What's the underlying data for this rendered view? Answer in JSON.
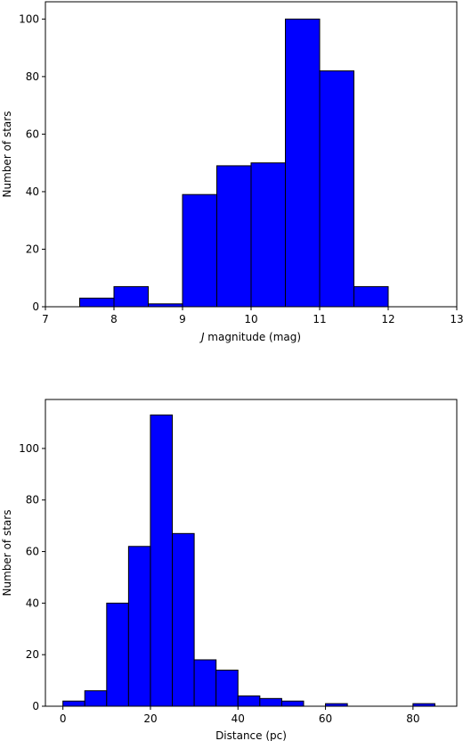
{
  "chart_data": [
    {
      "type": "bar",
      "title": "",
      "xlabel_prefix": "J",
      "xlabel": " magnitude (mag)",
      "ylabel": "Number of stars",
      "xlim": [
        7,
        13
      ],
      "ylim": [
        0,
        106
      ],
      "xticks": [
        7,
        8,
        9,
        10,
        11,
        12,
        13
      ],
      "yticks": [
        0,
        20,
        40,
        60,
        80,
        100
      ],
      "bar_color": "#0000ff",
      "bins": [
        {
          "x0": 7.5,
          "x1": 8.0,
          "value": 3
        },
        {
          "x0": 8.0,
          "x1": 8.5,
          "value": 7
        },
        {
          "x0": 8.5,
          "x1": 9.0,
          "value": 1
        },
        {
          "x0": 9.0,
          "x1": 9.5,
          "value": 39
        },
        {
          "x0": 9.5,
          "x1": 10.0,
          "value": 49
        },
        {
          "x0": 10.0,
          "x1": 10.5,
          "value": 50
        },
        {
          "x0": 10.5,
          "x1": 11.0,
          "value": 100
        },
        {
          "x0": 11.0,
          "x1": 11.5,
          "value": 82
        },
        {
          "x0": 11.5,
          "x1": 12.0,
          "value": 7
        }
      ]
    },
    {
      "type": "bar",
      "title": "",
      "xlabel_prefix": "",
      "xlabel": "Distance (pc)",
      "ylabel": "Number of stars",
      "xlim": [
        -4,
        90
      ],
      "ylim": [
        0,
        119
      ],
      "xticks": [
        0,
        20,
        40,
        60,
        80
      ],
      "yticks": [
        0,
        20,
        40,
        60,
        80,
        100
      ],
      "bar_color": "#0000ff",
      "bins": [
        {
          "x0": 0,
          "x1": 5,
          "value": 2
        },
        {
          "x0": 5,
          "x1": 10,
          "value": 6
        },
        {
          "x0": 10,
          "x1": 15,
          "value": 40
        },
        {
          "x0": 15,
          "x1": 20,
          "value": 62
        },
        {
          "x0": 20,
          "x1": 25,
          "value": 113
        },
        {
          "x0": 25,
          "x1": 30,
          "value": 67
        },
        {
          "x0": 30,
          "x1": 35,
          "value": 18
        },
        {
          "x0": 35,
          "x1": 40,
          "value": 14
        },
        {
          "x0": 40,
          "x1": 45,
          "value": 4
        },
        {
          "x0": 45,
          "x1": 50,
          "value": 3
        },
        {
          "x0": 50,
          "x1": 55,
          "value": 2
        },
        {
          "x0": 55,
          "x1": 60,
          "value": 0
        },
        {
          "x0": 60,
          "x1": 65,
          "value": 1
        },
        {
          "x0": 65,
          "x1": 70,
          "value": 0
        },
        {
          "x0": 70,
          "x1": 75,
          "value": 0
        },
        {
          "x0": 75,
          "x1": 80,
          "value": 0
        },
        {
          "x0": 80,
          "x1": 85,
          "value": 1
        }
      ]
    }
  ]
}
